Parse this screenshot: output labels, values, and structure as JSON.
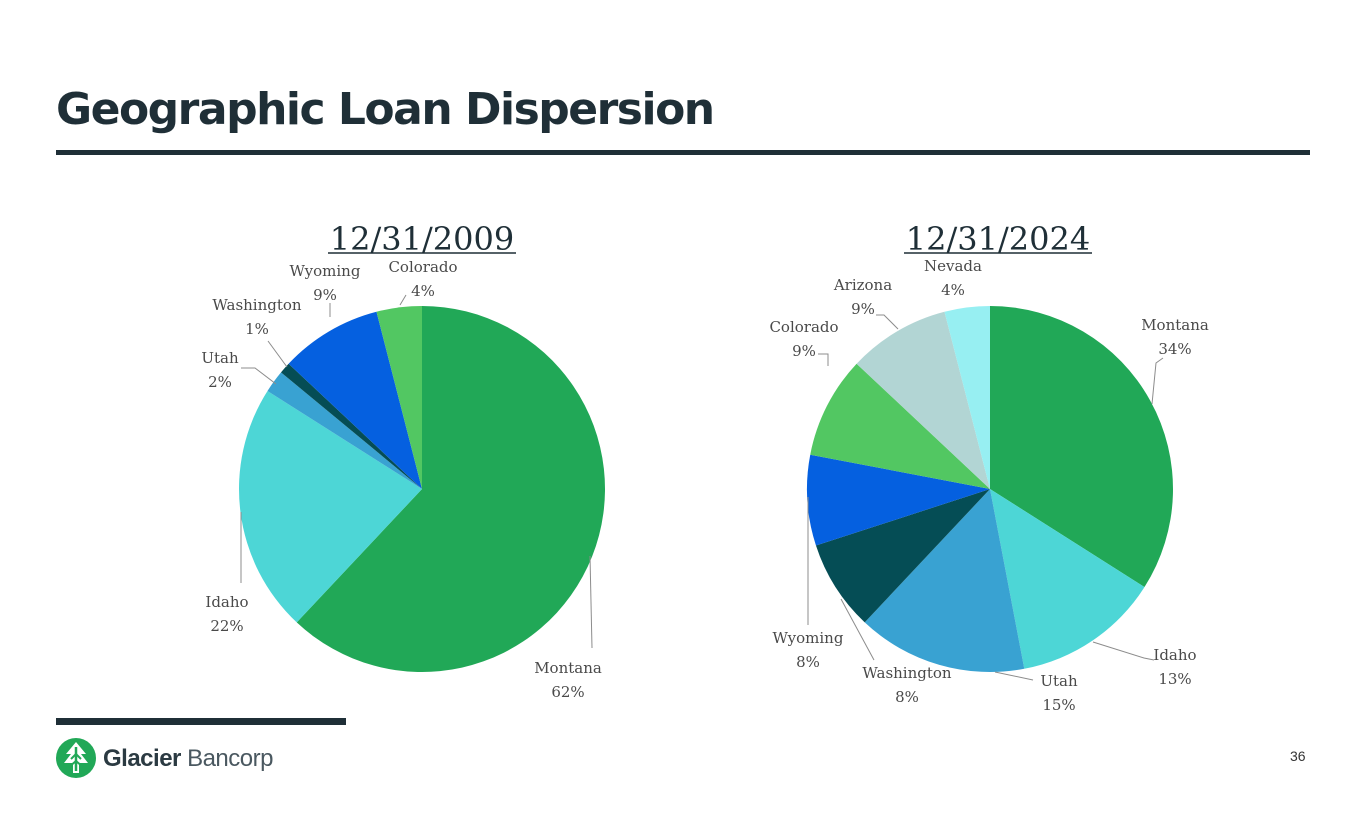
{
  "header": {
    "title": "Geographic Loan Dispersion"
  },
  "footer": {
    "brand_bold": "Glacier",
    "brand_light": "Bancorp",
    "page_number": "36"
  },
  "colors": {
    "dark": "#1f2f37",
    "Montana": "#21a857",
    "Idaho": "#4dd6d6",
    "Utah": "#39a2d2",
    "Washington": "#054d55",
    "Wyoming": "#0560e0",
    "Colorado": "#52c762",
    "Arizona": "#b2d5d4",
    "Nevada": "#97eff2",
    "logo": "#21a857"
  },
  "chart_data": [
    {
      "type": "pie",
      "title": "12/31/2009",
      "slices": [
        {
          "label": "Montana",
          "value": 62,
          "display": "62%"
        },
        {
          "label": "Idaho",
          "value": 22,
          "display": "22%"
        },
        {
          "label": "Utah",
          "value": 2,
          "display": "2%"
        },
        {
          "label": "Washington",
          "value": 1,
          "display": "1%"
        },
        {
          "label": "Wyoming",
          "value": 9,
          "display": "9%"
        },
        {
          "label": "Colorado",
          "value": 4,
          "display": "4%"
        }
      ]
    },
    {
      "type": "pie",
      "title": "12/31/2024",
      "slices": [
        {
          "label": "Montana",
          "value": 34,
          "display": "34%"
        },
        {
          "label": "Idaho",
          "value": 13,
          "display": "13%"
        },
        {
          "label": "Utah",
          "value": 15,
          "display": "15%"
        },
        {
          "label": "Washington",
          "value": 8,
          "display": "8%"
        },
        {
          "label": "Wyoming",
          "value": 8,
          "display": "8%"
        },
        {
          "label": "Colorado",
          "value": 9,
          "display": "9%"
        },
        {
          "label": "Arizona",
          "value": 9,
          "display": "9%"
        },
        {
          "label": "Nevada",
          "value": 4,
          "display": "4%"
        }
      ]
    }
  ]
}
